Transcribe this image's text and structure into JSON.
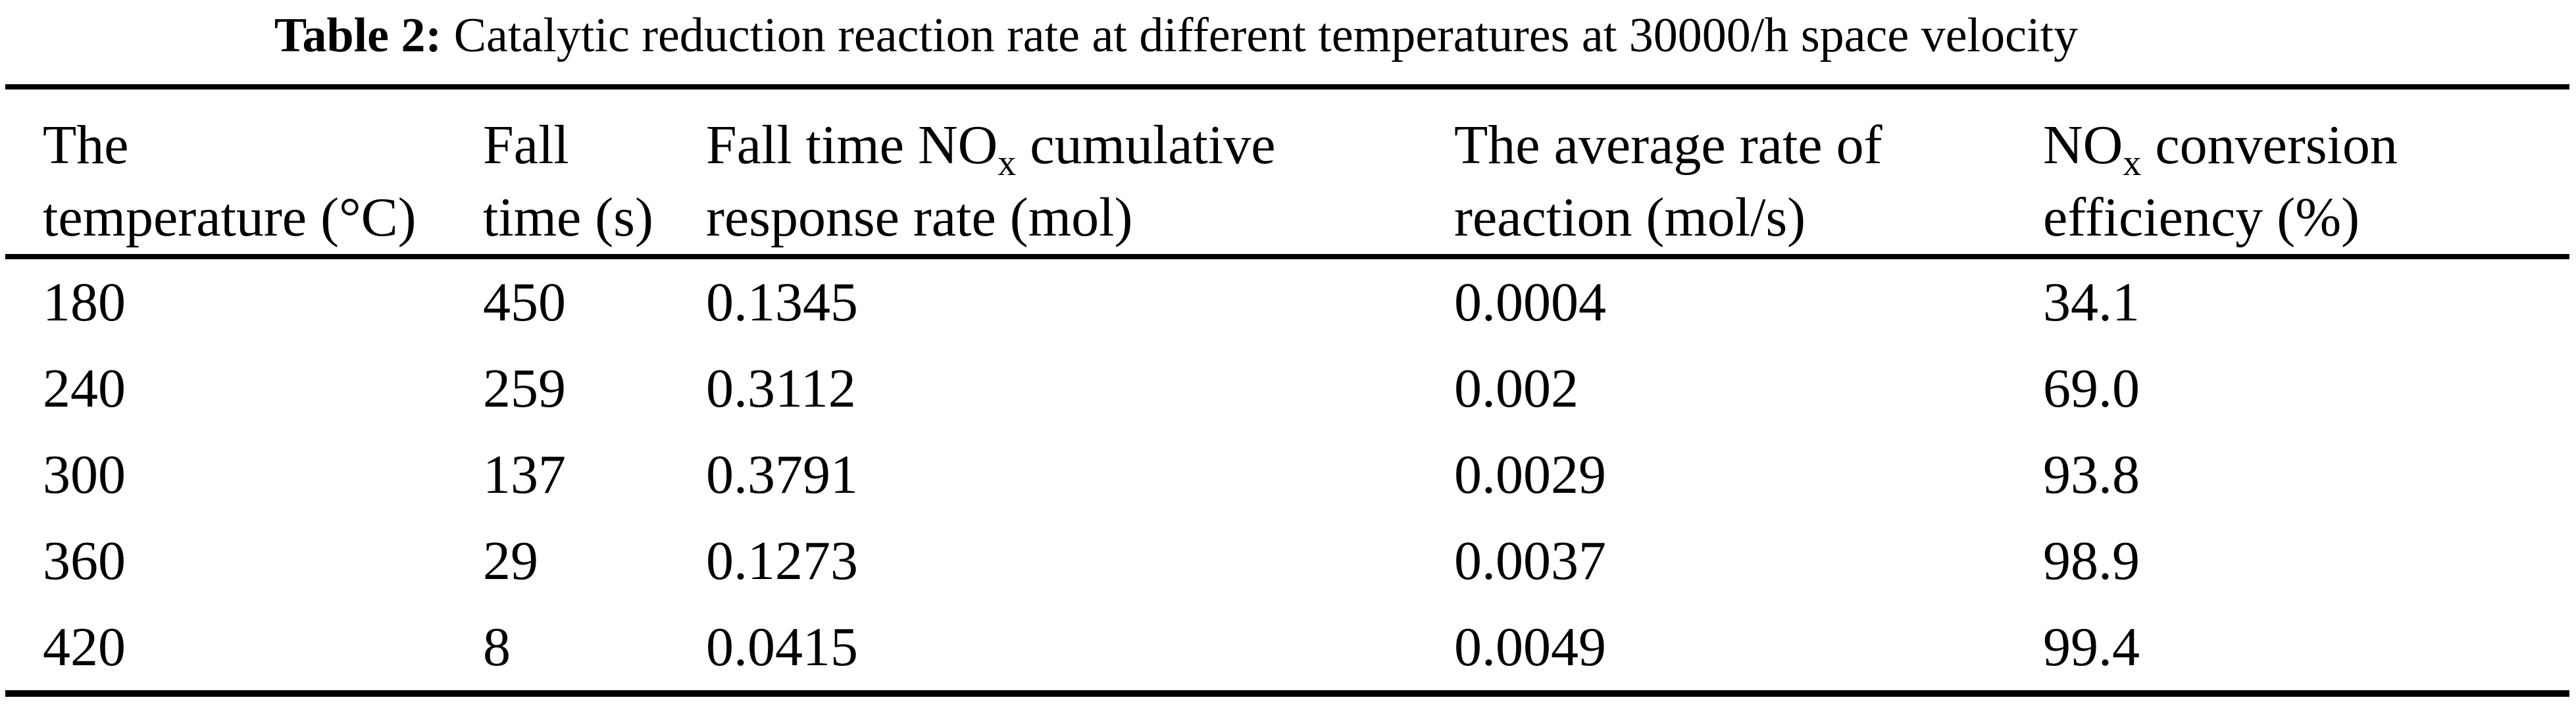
{
  "caption": {
    "label": "Table 2:",
    "text": " Catalytic reduction reaction rate at different temperatures at 30000/h space velocity"
  },
  "table": {
    "columns": [
      {
        "l1pre": "The",
        "l1sub": "",
        "l1post": "",
        "l2": "temperature (°C)"
      },
      {
        "l1pre": "Fall",
        "l1sub": "",
        "l1post": "",
        "l2": "time (s)"
      },
      {
        "l1pre": "Fall time NO",
        "l1sub": "x",
        "l1post": " cumulative",
        "l2": "response rate (mol)"
      },
      {
        "l1pre": "The average rate of",
        "l1sub": "",
        "l1post": "",
        "l2": "reaction (mol/s)"
      },
      {
        "l1pre": "NO",
        "l1sub": "x",
        "l1post": " conversion",
        "l2": "efficiency (%)"
      }
    ],
    "rows": [
      [
        "180",
        "450",
        "0.1345",
        "0.0004",
        "34.1"
      ],
      [
        "240",
        "259",
        "0.3112",
        "0.002",
        "69.0"
      ],
      [
        "300",
        "137",
        "0.3791",
        "0.0029",
        "93.8"
      ],
      [
        "360",
        "29",
        "0.1273",
        "0.0037",
        "98.9"
      ],
      [
        "420",
        "8",
        "0.0415",
        "0.0049",
        "99.4"
      ]
    ]
  },
  "colors": {
    "text": "#000000",
    "background": "#ffffff",
    "rule": "#000000"
  }
}
